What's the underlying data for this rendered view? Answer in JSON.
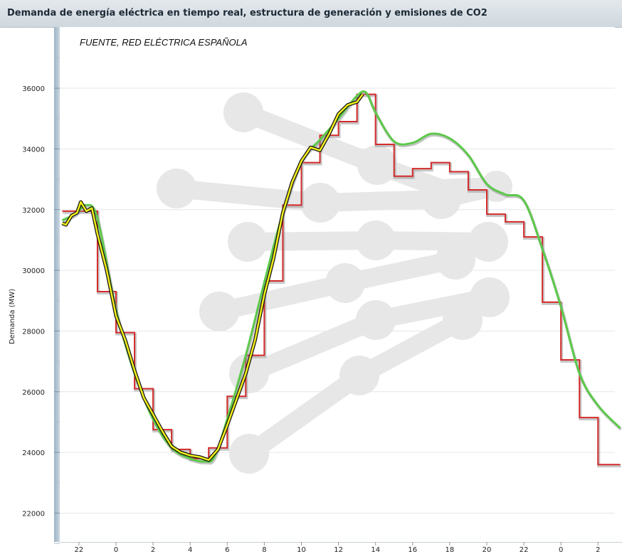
{
  "page": {
    "title": "Demanda de energía eléctrica en tiempo real, estructura de generación y emisiones de CO2"
  },
  "chart_data": {
    "type": "line",
    "source_note": "FUENTE, RED ELÉCTRICA ESPAÑOLA",
    "ylabel": "Demanda (MW)",
    "xlabel": "",
    "ylim": [
      21000,
      37000
    ],
    "y_ticks": [
      22000,
      24000,
      26000,
      28000,
      30000,
      32000,
      34000,
      36000
    ],
    "x_ticks": [
      "22",
      "0",
      "2",
      "4",
      "6",
      "8",
      "10",
      "12",
      "14",
      "16",
      "18",
      "20",
      "22",
      "0",
      "2"
    ],
    "x_range_hours": [
      -3,
      27.2
    ],
    "x_ticks_at_hours": [
      -2,
      0,
      2,
      4,
      6,
      8,
      10,
      12,
      14,
      16,
      18,
      20,
      22,
      24,
      26
    ],
    "colors": {
      "programmed": "#d42b2b",
      "forecast": "#5cc94a",
      "real": "#f2ef1c",
      "real_outline": "#111111"
    },
    "series": [
      {
        "kind": "step",
        "x": [
          -2.9,
          -1,
          0,
          1,
          2,
          3,
          4,
          5,
          6,
          7,
          8,
          9,
          10,
          11,
          12,
          13,
          14,
          15,
          16,
          17,
          18,
          19,
          20,
          21,
          22,
          23,
          24,
          25,
          26
        ],
        "values": [
          31950,
          29300,
          27950,
          26100,
          24750,
          24100,
          23800,
          24150,
          25850,
          27200,
          29650,
          32150,
          33550,
          34450,
          34900,
          35800,
          34150,
          33100,
          33350,
          33550,
          33250,
          32650,
          31850,
          31600,
          31100,
          28950,
          27050,
          25150,
          23600
        ],
        "x_end": 27.2
      },
      {
        "kind": "line",
        "x": [
          -2.9,
          -2.2,
          -1.6,
          -1,
          0,
          1,
          2,
          3,
          4,
          4.8,
          5.3,
          6,
          7,
          8,
          9,
          10,
          11,
          12,
          13,
          13.5,
          14,
          15,
          16,
          17,
          18,
          19,
          20,
          21,
          22,
          23,
          24,
          25,
          26,
          27.2
        ],
        "values": [
          31650,
          31850,
          32150,
          31700,
          28700,
          26600,
          25100,
          24150,
          23800,
          23700,
          23850,
          25100,
          27200,
          29600,
          31900,
          33600,
          34300,
          35000,
          35750,
          35850,
          35200,
          34250,
          34200,
          34500,
          34350,
          33800,
          32850,
          32500,
          32300,
          30700,
          28800,
          26600,
          25550,
          24800
        ]
      },
      {
        "kind": "line",
        "x": [
          -2.9,
          -2.7,
          -2.4,
          -2.1,
          -1.9,
          -1.6,
          -1.3,
          -1,
          -0.5,
          0,
          0.5,
          1,
          1.5,
          2,
          2.5,
          3,
          3.5,
          4,
          4.5,
          5,
          5.5,
          6,
          6.5,
          7,
          7.5,
          8,
          8.5,
          9,
          9.5,
          10,
          10.5,
          11,
          11.5,
          12,
          12.5,
          13,
          13.3
        ],
        "values": [
          31550,
          31500,
          31800,
          31900,
          32250,
          31950,
          32050,
          31200,
          30000,
          28500,
          27700,
          26700,
          25800,
          25250,
          24700,
          24200,
          24000,
          23900,
          23850,
          23750,
          24100,
          24900,
          25750,
          26600,
          27700,
          29200,
          30400,
          31900,
          32900,
          33600,
          34050,
          33950,
          34500,
          35150,
          35450,
          35550,
          35800
        ]
      }
    ],
    "grid": true,
    "legend": "none"
  }
}
